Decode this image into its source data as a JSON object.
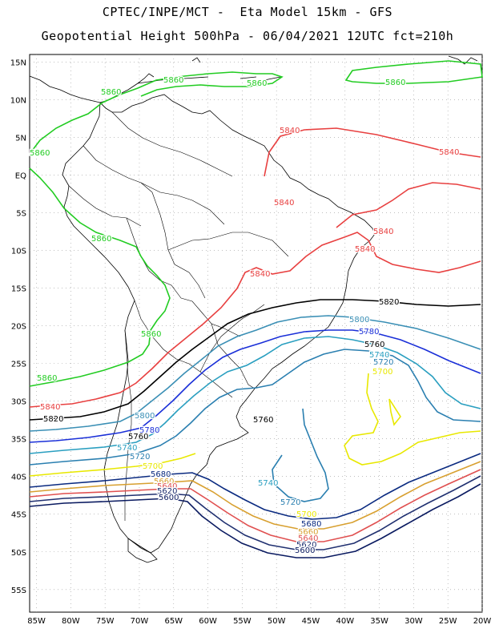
{
  "header": {
    "line1": "CPTEC/INPE/MCT -  Eta Model 15km - GFS",
    "line2": "Geopotential Height 500hPa - 06/04/2021 12UTC fct=210h"
  },
  "axes": {
    "lat_labels": [
      "15N",
      "10N",
      "5N",
      "EQ",
      "5S",
      "10S",
      "15S",
      "20S",
      "25S",
      "30S",
      "35S",
      "40S",
      "45S",
      "50S",
      "55S"
    ],
    "lon_labels": [
      "85W",
      "80W",
      "75W",
      "70W",
      "65W",
      "60W",
      "55W",
      "50W",
      "45W",
      "40W",
      "35W",
      "30W",
      "25W",
      "20W"
    ]
  },
  "colors": {
    "c5860": "#22cc22",
    "c5840": "#e84040",
    "c5820": "#000000",
    "c5800": "#3a8fb5",
    "c5780": "#1a2fd8",
    "c5740": "#2a9fc0",
    "c5720": "#2a7fb0",
    "c5700": "#e8e800",
    "c5680": "#0a2a80",
    "c5660": "#d8a030",
    "c5640": "#e05050",
    "c5620": "#203070",
    "c5600": "#0a1a60",
    "land": "#000000"
  },
  "labels": {
    "l5860": "5860",
    "l5840": "5840",
    "l5820": "5820",
    "l5800": "5800",
    "l5780": "5780",
    "l5760": "5760",
    "l5740": "5740",
    "l5720": "5720",
    "l5700": "5700",
    "l5680": "5680",
    "l5660": "5660",
    "l5640": "5640",
    "l5620": "5620",
    "l5600": "5600"
  }
}
